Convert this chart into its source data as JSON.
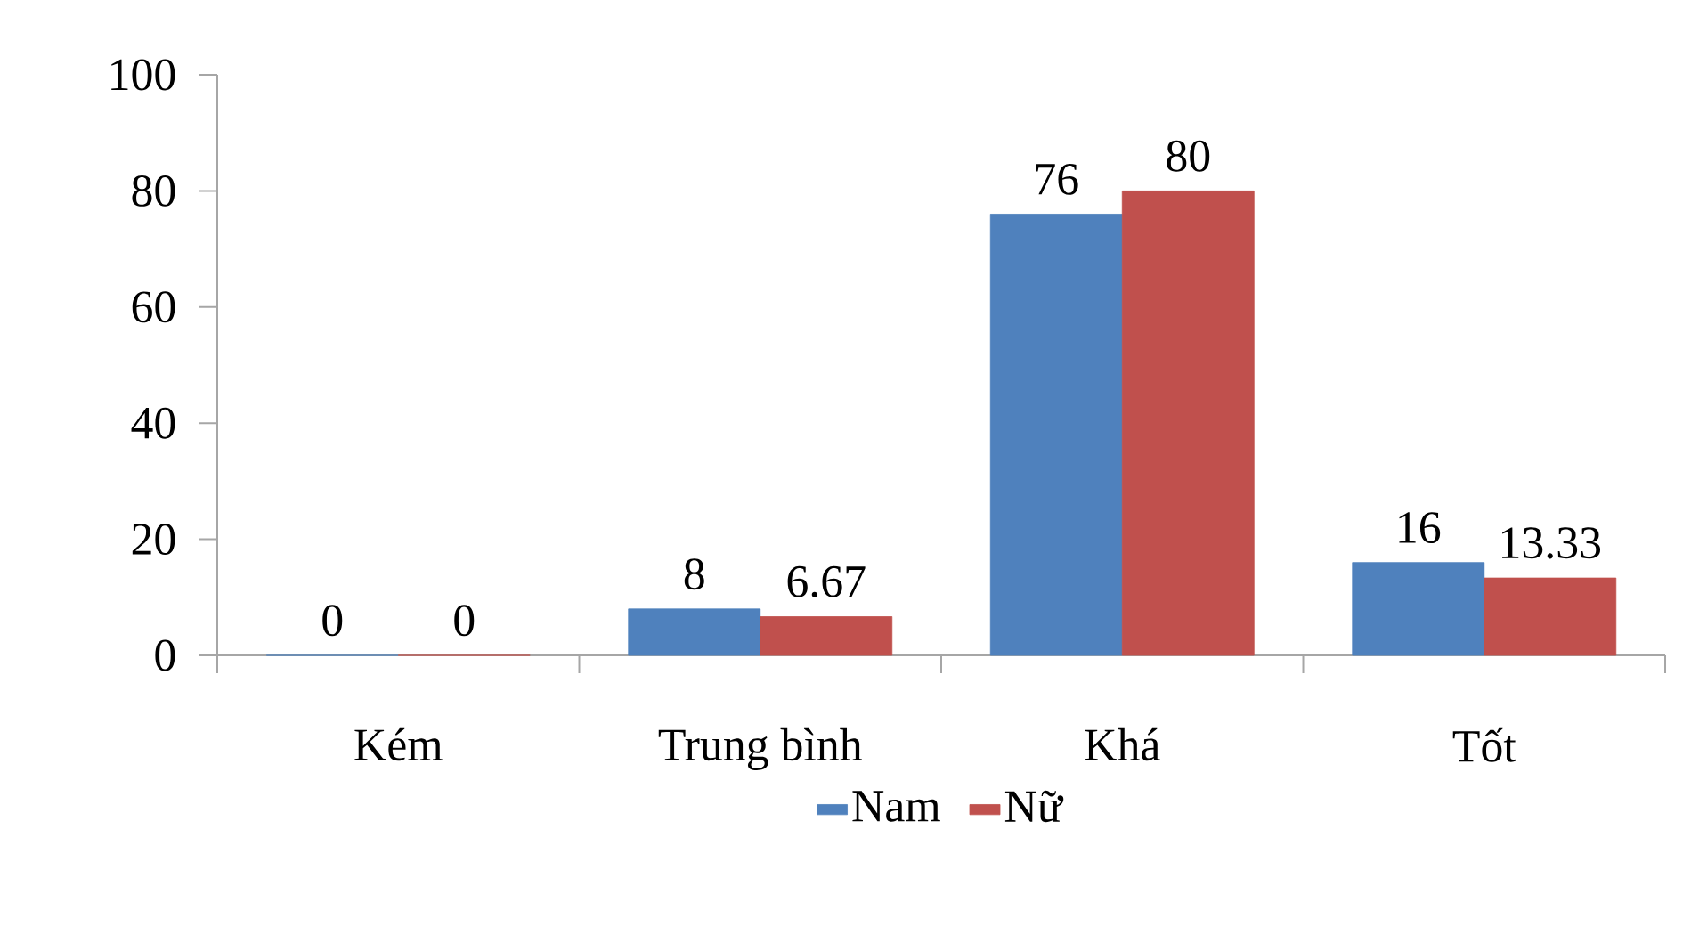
{
  "chart_data": {
    "type": "bar",
    "categories": [
      "Kém",
      "Trung bình",
      "Khá",
      "Tốt"
    ],
    "series": [
      {
        "name": "Nam",
        "color": "#4f81bd",
        "values": [
          0,
          8,
          76,
          16
        ]
      },
      {
        "name": "Nữ",
        "color": "#c0504d",
        "values": [
          0,
          6.67,
          80,
          13.33
        ]
      }
    ],
    "ylim": [
      0,
      100
    ],
    "yticks": [
      0,
      20,
      40,
      60,
      80,
      100
    ],
    "data_labels": true,
    "legend": "bottom",
    "grid": false
  }
}
